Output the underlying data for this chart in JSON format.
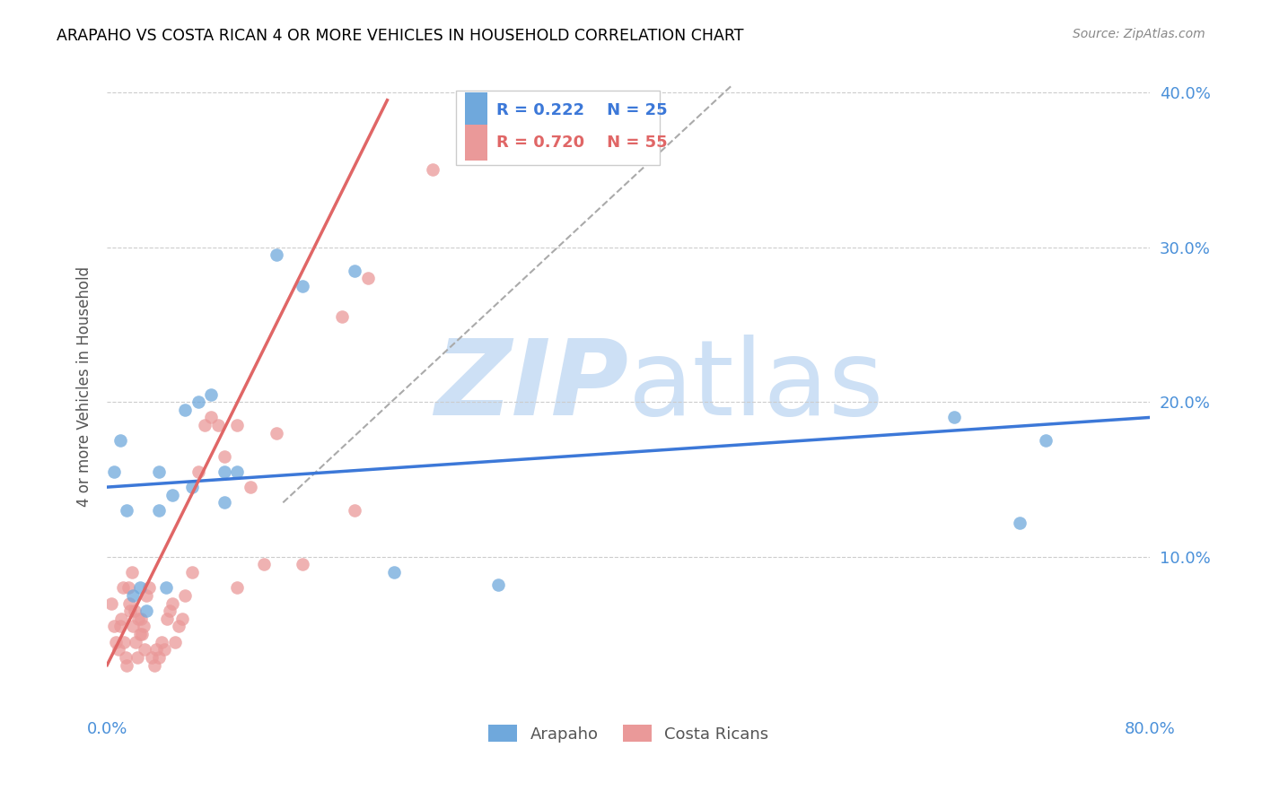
{
  "title": "ARAPAHO VS COSTA RICAN 4 OR MORE VEHICLES IN HOUSEHOLD CORRELATION CHART",
  "source": "Source: ZipAtlas.com",
  "ylabel": "4 or more Vehicles in Household",
  "watermark_zip": "ZIP",
  "watermark_atlas": "atlas",
  "xlim": [
    0.0,
    0.8
  ],
  "ylim": [
    0.0,
    0.42
  ],
  "xtick_positions": [
    0.0,
    0.1,
    0.2,
    0.3,
    0.4,
    0.5,
    0.6,
    0.7,
    0.8
  ],
  "xticklabels": [
    "0.0%",
    "",
    "",
    "",
    "",
    "",
    "",
    "",
    "80.0%"
  ],
  "ytick_positions": [
    0.1,
    0.2,
    0.3,
    0.4
  ],
  "yticklabels_right": [
    "10.0%",
    "20.0%",
    "30.0%",
    "40.0%"
  ],
  "legend_labels": [
    "Arapaho",
    "Costa Ricans"
  ],
  "legend_R": [
    "R = 0.222",
    "R = 0.720"
  ],
  "legend_N": [
    "N = 25",
    "N = 55"
  ],
  "arapaho_color": "#6fa8dc",
  "costa_rican_color": "#ea9999",
  "arapaho_line_color": "#3c78d8",
  "costa_rican_line_color": "#e06666",
  "trend_line_dashed_color": "#aaaaaa",
  "background_color": "#ffffff",
  "grid_color": "#cccccc",
  "title_color": "#000000",
  "axis_tick_color": "#4a90d9",
  "watermark_color": "#cde0f5",
  "arapaho_points": [
    [
      0.005,
      0.155
    ],
    [
      0.01,
      0.175
    ],
    [
      0.015,
      0.13
    ],
    [
      0.02,
      0.075
    ],
    [
      0.025,
      0.08
    ],
    [
      0.03,
      0.065
    ],
    [
      0.04,
      0.13
    ],
    [
      0.04,
      0.155
    ],
    [
      0.045,
      0.08
    ],
    [
      0.05,
      0.14
    ],
    [
      0.06,
      0.195
    ],
    [
      0.065,
      0.145
    ],
    [
      0.07,
      0.2
    ],
    [
      0.08,
      0.205
    ],
    [
      0.09,
      0.155
    ],
    [
      0.09,
      0.135
    ],
    [
      0.1,
      0.155
    ],
    [
      0.13,
      0.295
    ],
    [
      0.15,
      0.275
    ],
    [
      0.19,
      0.285
    ],
    [
      0.22,
      0.09
    ],
    [
      0.3,
      0.082
    ],
    [
      0.65,
      0.19
    ],
    [
      0.72,
      0.175
    ],
    [
      0.7,
      0.122
    ]
  ],
  "costa_rican_points": [
    [
      0.003,
      0.07
    ],
    [
      0.005,
      0.055
    ],
    [
      0.007,
      0.045
    ],
    [
      0.009,
      0.04
    ],
    [
      0.01,
      0.055
    ],
    [
      0.011,
      0.06
    ],
    [
      0.012,
      0.08
    ],
    [
      0.013,
      0.045
    ],
    [
      0.014,
      0.035
    ],
    [
      0.015,
      0.03
    ],
    [
      0.016,
      0.08
    ],
    [
      0.017,
      0.07
    ],
    [
      0.018,
      0.065
    ],
    [
      0.019,
      0.09
    ],
    [
      0.02,
      0.055
    ],
    [
      0.021,
      0.065
    ],
    [
      0.022,
      0.045
    ],
    [
      0.023,
      0.035
    ],
    [
      0.024,
      0.06
    ],
    [
      0.025,
      0.05
    ],
    [
      0.026,
      0.06
    ],
    [
      0.027,
      0.05
    ],
    [
      0.028,
      0.055
    ],
    [
      0.029,
      0.04
    ],
    [
      0.03,
      0.075
    ],
    [
      0.032,
      0.08
    ],
    [
      0.034,
      0.035
    ],
    [
      0.036,
      0.03
    ],
    [
      0.038,
      0.04
    ],
    [
      0.04,
      0.035
    ],
    [
      0.042,
      0.045
    ],
    [
      0.044,
      0.04
    ],
    [
      0.046,
      0.06
    ],
    [
      0.048,
      0.065
    ],
    [
      0.05,
      0.07
    ],
    [
      0.052,
      0.045
    ],
    [
      0.055,
      0.055
    ],
    [
      0.058,
      0.06
    ],
    [
      0.06,
      0.075
    ],
    [
      0.065,
      0.09
    ],
    [
      0.07,
      0.155
    ],
    [
      0.075,
      0.185
    ],
    [
      0.08,
      0.19
    ],
    [
      0.085,
      0.185
    ],
    [
      0.09,
      0.165
    ],
    [
      0.1,
      0.08
    ],
    [
      0.1,
      0.185
    ],
    [
      0.11,
      0.145
    ],
    [
      0.12,
      0.095
    ],
    [
      0.13,
      0.18
    ],
    [
      0.15,
      0.095
    ],
    [
      0.18,
      0.255
    ],
    [
      0.19,
      0.13
    ],
    [
      0.2,
      0.28
    ],
    [
      0.25,
      0.35
    ]
  ],
  "arapaho_trend_x": [
    0.0,
    0.8
  ],
  "arapaho_trend_y": [
    0.145,
    0.19
  ],
  "costa_rican_trend_x": [
    0.0,
    0.215
  ],
  "costa_rican_trend_y": [
    0.03,
    0.395
  ],
  "dashed_trend_x": [
    0.135,
    0.48
  ],
  "dashed_trend_y": [
    0.135,
    0.405
  ]
}
